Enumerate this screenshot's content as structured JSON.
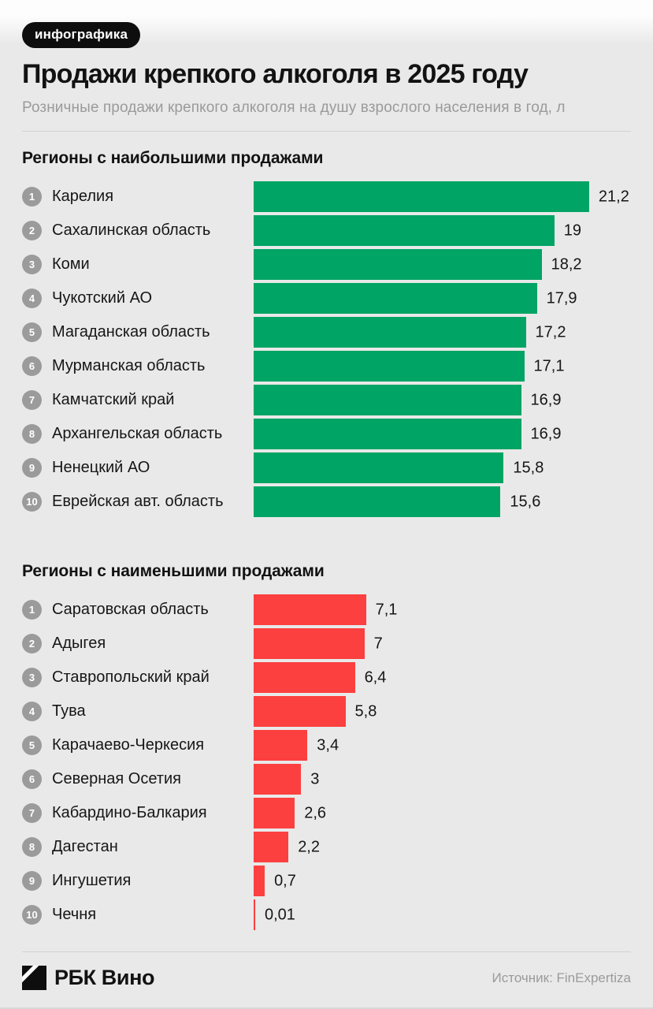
{
  "badge": "инфографика",
  "header": {
    "title": "Продажи крепкого алкоголя в 2025 году",
    "subtitle": "Розничные продажи крепкого алкоголя на душу взрослого населения в год, л"
  },
  "colors": {
    "top_green": "#00a464",
    "bottom_red": "#fc3f3f",
    "rank_circle": "#9b9b9b",
    "background": "#e9e9e9",
    "text": "#161616",
    "muted_text": "#9a9a9a"
  },
  "chart_data": [
    {
      "type": "bar",
      "orientation": "horizontal",
      "title": "Регионы с наибольшими продажами",
      "unit": "л",
      "color": "#00a464",
      "xlim": [
        0,
        21.2
      ],
      "categories": [
        "Карелия",
        "Сахалинская область",
        "Коми",
        "Чукотский АО",
        "Магаданская область",
        "Мурманская область",
        "Камчатский край",
        "Архангельская область",
        "Ненецкий АО",
        "Еврейская авт. область"
      ],
      "values": [
        21.2,
        19,
        18.2,
        17.9,
        17.2,
        17.1,
        16.9,
        16.9,
        15.8,
        15.6
      ],
      "value_labels": [
        "21,2",
        "19",
        "18,2",
        "17,9",
        "17,2",
        "17,1",
        "16,9",
        "16,9",
        "15,8",
        "15,6"
      ]
    },
    {
      "type": "bar",
      "orientation": "horizontal",
      "title": "Регионы с наименьшими продажами",
      "unit": "л",
      "color": "#fc3f3f",
      "xlim": [
        0,
        21.2
      ],
      "categories": [
        "Саратовская область",
        "Адыгея",
        "Ставропольский край",
        "Тува",
        "Карачаево-Черкесия",
        "Северная Осетия",
        "Кабардино-Балкария",
        "Дагестан",
        "Ингушетия",
        "Чечня"
      ],
      "values": [
        7.1,
        7,
        6.4,
        5.8,
        3.4,
        3,
        2.6,
        2.2,
        0.7,
        0.01
      ],
      "value_labels": [
        "7,1",
        "7",
        "6,4",
        "5,8",
        "3,4",
        "3",
        "2,6",
        "2,2",
        "0,7",
        "0,01"
      ]
    }
  ],
  "footer": {
    "brand": "РБК Вино",
    "source": "Источник: FinExpertiza"
  }
}
